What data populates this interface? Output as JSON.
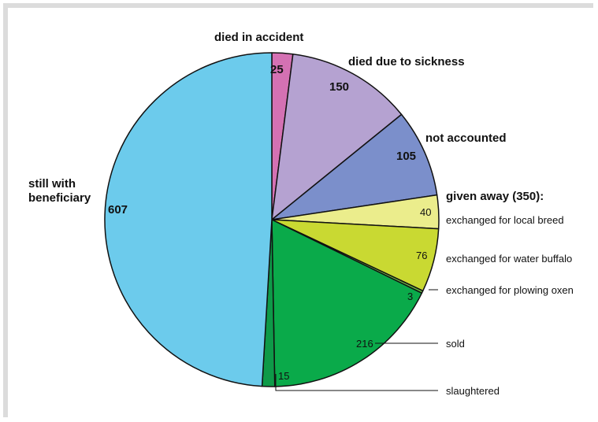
{
  "chart_data": {
    "type": "pie",
    "slices": [
      {
        "id": "died-in-accident",
        "value": 25,
        "color": "#d471b3"
      },
      {
        "id": "died-due-to-sickness",
        "value": 150,
        "color": "#b5a2d1"
      },
      {
        "id": "not-accounted",
        "value": 105,
        "color": "#7b8fcb"
      },
      {
        "id": "exchanged-local-breed",
        "value": 40,
        "color": "#ebed8c"
      },
      {
        "id": "exchanged-water-buffalo",
        "value": 76,
        "color": "#c9d932"
      },
      {
        "id": "exchanged-plowing-oxen",
        "value": 3,
        "color": "#6cba45"
      },
      {
        "id": "sold",
        "value": 216,
        "color": "#0aaa4a"
      },
      {
        "id": "slaughtered",
        "value": 15,
        "color": "#0e9a48"
      },
      {
        "id": "still-with-beneficiary",
        "value": 607,
        "color": "#6ccbec"
      }
    ],
    "labels": {
      "died_in_accident": "died in accident",
      "died_due_to_sickness": "died due to sickness",
      "not_accounted": "not accounted",
      "still_with_line1": "still with",
      "still_with_line2": "beneficiary",
      "given_away": "given away (350):",
      "local_breed": "exchanged for local breed",
      "water_buffalo": "exchanged for water buffalo",
      "plowing_oxen": "exchanged for plowing oxen",
      "sold": "sold",
      "slaughtered": "slaughtered"
    },
    "value_labels": {
      "accident": "25",
      "sickness": "150",
      "not_accounted": "105",
      "local_breed": "40",
      "water_buffalo": "76",
      "plowing_oxen": "3",
      "sold": "216",
      "slaughtered": "15",
      "still_with": "607"
    }
  }
}
